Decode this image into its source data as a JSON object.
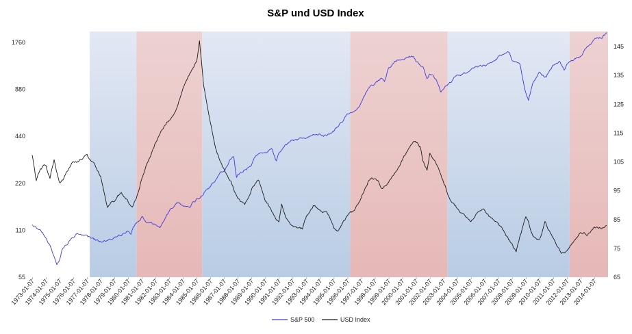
{
  "chart_data": {
    "type": "line",
    "title": "S&P und USD Index",
    "xlabel": "",
    "ylabel_left": "",
    "ylabel_right": "",
    "left_axis": {
      "scale": "log",
      "ticks": [
        55,
        110,
        220,
        440,
        880,
        1760
      ]
    },
    "right_axis": {
      "scale": "linear",
      "ticks": [
        65,
        75,
        85,
        95,
        105,
        115,
        125,
        135,
        145
      ]
    },
    "x_range": [
      1973.0,
      2015.0
    ],
    "x_tick_labels": [
      "1973-01-07",
      "1974-01-07",
      "1975-01-07",
      "1976-01-07",
      "1977-01-07",
      "1978-01-07",
      "1979-01-07",
      "1980-01-07",
      "1981-01-07",
      "1982-01-07",
      "1983-01-07",
      "1984-01-07",
      "1985-01-07",
      "1986-01-07",
      "1987-01-07",
      "1988-01-07",
      "1989-01-07",
      "1990-01-07",
      "1991-01-07",
      "1992-01-07",
      "1993-01-07",
      "1994-01-07",
      "1995-01-07",
      "1996-01-07",
      "1997-01-07",
      "1998-01-07",
      "1999-01-07",
      "2000-01-07",
      "2001-01-07",
      "2002-01-07",
      "2003-01-07",
      "2004-01-07",
      "2005-01-07",
      "2006-01-07",
      "2007-01-07",
      "2008-01-07",
      "2009-01-07",
      "2010-01-07",
      "2011-01-07",
      "2012-01-07",
      "2013-01-07",
      "2014-01-07"
    ],
    "bands": [
      {
        "start": 1977.2,
        "end": 1980.6,
        "color": "blue"
      },
      {
        "start": 1980.6,
        "end": 1985.4,
        "color": "red"
      },
      {
        "start": 1985.4,
        "end": 1996.2,
        "color": "blue"
      },
      {
        "start": 1996.2,
        "end": 2003.3,
        "color": "red"
      },
      {
        "start": 2003.3,
        "end": 2012.2,
        "color": "blue"
      },
      {
        "start": 2012.2,
        "end": 2015.0,
        "color": "red"
      }
    ],
    "series": [
      {
        "name": "S&P 500",
        "axis": "left",
        "color": "#3f37d8",
        "x": [
          1973.0,
          1973.5,
          1974.0,
          1974.4,
          1974.8,
          1975.0,
          1975.2,
          1975.5,
          1976.0,
          1976.5,
          1977.0,
          1977.5,
          1978.0,
          1978.5,
          1979.0,
          1979.5,
          1980.0,
          1980.2,
          1980.6,
          1981.0,
          1981.5,
          1982.0,
          1982.3,
          1982.6,
          1983.0,
          1983.5,
          1984.0,
          1984.5,
          1985.0,
          1985.5,
          1986.0,
          1986.5,
          1987.0,
          1987.4,
          1987.7,
          1987.9,
          1988.0,
          1988.5,
          1989.0,
          1989.5,
          1990.0,
          1990.5,
          1990.8,
          1991.0,
          1991.5,
          1992.0,
          1992.5,
          1993.0,
          1993.5,
          1994.0,
          1994.5,
          1995.0,
          1995.5,
          1996.0,
          1996.5,
          1997.0,
          1997.5,
          1998.0,
          1998.5,
          1998.7,
          1999.0,
          1999.5,
          2000.0,
          2000.5,
          2000.8,
          2001.0,
          2001.5,
          2001.8,
          2002.0,
          2002.5,
          2002.8,
          2003.0,
          2003.5,
          2004.0,
          2004.5,
          2005.0,
          2005.5,
          2006.0,
          2006.5,
          2007.0,
          2007.5,
          2007.8,
          2008.0,
          2008.3,
          2008.6,
          2008.9,
          2009.2,
          2009.5,
          2010.0,
          2010.5,
          2011.0,
          2011.5,
          2011.8,
          2012.0,
          2012.5,
          2013.0,
          2013.5,
          2014.0,
          2014.5,
          2014.9
        ],
        "y": [
          118,
          112,
          100,
          85,
          68,
          72,
          85,
          92,
          101,
          104,
          100,
          96,
          92,
          96,
          100,
          104,
          112,
          108,
          125,
          134,
          122,
          120,
          115,
          130,
          145,
          165,
          162,
          155,
          175,
          190,
          210,
          240,
          270,
          310,
          320,
          240,
          250,
          270,
          290,
          340,
          350,
          360,
          310,
          340,
          380,
          410,
          420,
          440,
          450,
          460,
          455,
          480,
          540,
          600,
          650,
          740,
          900,
          960,
          1050,
          980,
          1200,
          1350,
          1420,
          1460,
          1420,
          1300,
          1220,
          1050,
          1130,
          1000,
          840,
          880,
          980,
          1110,
          1120,
          1180,
          1200,
          1260,
          1280,
          1420,
          1500,
          1530,
          1400,
          1320,
          1250,
          900,
          750,
          950,
          1120,
          1050,
          1280,
          1320,
          1180,
          1290,
          1380,
          1480,
          1620,
          1800,
          1900,
          2040
        ]
      },
      {
        "name": "USD Index",
        "axis": "right",
        "color": "#1a1a1a",
        "x": [
          1973.0,
          1973.3,
          1973.6,
          1974.0,
          1974.3,
          1974.6,
          1975.0,
          1975.3,
          1975.6,
          1976.0,
          1976.5,
          1977.0,
          1977.5,
          1978.0,
          1978.5,
          1978.8,
          1979.0,
          1979.5,
          1980.0,
          1980.3,
          1980.6,
          1981.0,
          1981.5,
          1982.0,
          1982.5,
          1983.0,
          1983.5,
          1984.0,
          1984.5,
          1985.0,
          1985.2,
          1985.5,
          1986.0,
          1986.5,
          1987.0,
          1987.5,
          1988.0,
          1988.5,
          1989.0,
          1989.5,
          1990.0,
          1990.5,
          1991.0,
          1991.2,
          1991.5,
          1992.0,
          1992.7,
          1993.0,
          1993.5,
          1994.0,
          1994.5,
          1995.0,
          1995.3,
          1996.0,
          1996.5,
          1997.0,
          1997.5,
          1998.0,
          1998.5,
          1999.0,
          1999.5,
          2000.0,
          2000.5,
          2000.9,
          2001.3,
          2001.5,
          2001.8,
          2002.0,
          2002.5,
          2003.0,
          2003.5,
          2004.0,
          2004.5,
          2005.0,
          2005.5,
          2006.0,
          2006.5,
          2007.0,
          2007.5,
          2008.0,
          2008.3,
          2008.8,
          2009.0,
          2009.5,
          2010.0,
          2010.4,
          2010.8,
          2011.3,
          2011.6,
          2012.0,
          2012.5,
          2013.0,
          2013.5,
          2014.0,
          2014.5,
          2014.9
        ],
        "y": [
          107,
          98,
          103,
          104,
          100,
          106,
          98,
          99,
          102,
          105,
          106,
          107,
          104,
          100,
          90,
          92,
          92,
          94,
          91,
          90,
          93,
          99,
          106,
          112,
          117,
          120,
          123,
          130,
          135,
          140,
          147,
          132,
          118,
          108,
          102,
          98,
          92,
          90,
          96,
          99,
          92,
          88,
          84,
          90,
          86,
          83,
          82,
          86,
          90,
          88,
          87,
          82,
          81,
          86,
          88,
          92,
          98,
          99,
          96,
          98,
          102,
          106,
          110,
          112,
          110,
          105,
          102,
          108,
          104,
          98,
          92,
          89,
          86,
          84,
          88,
          88,
          85,
          83,
          80,
          76,
          74,
          83,
          86,
          80,
          78,
          84,
          80,
          76,
          73,
          74,
          77,
          80,
          80,
          82,
          82,
          83
        ]
      }
    ],
    "legend": {
      "placement": "bottom-center",
      "entries": [
        "S&P 500",
        "USD Index"
      ]
    },
    "grid": false
  }
}
